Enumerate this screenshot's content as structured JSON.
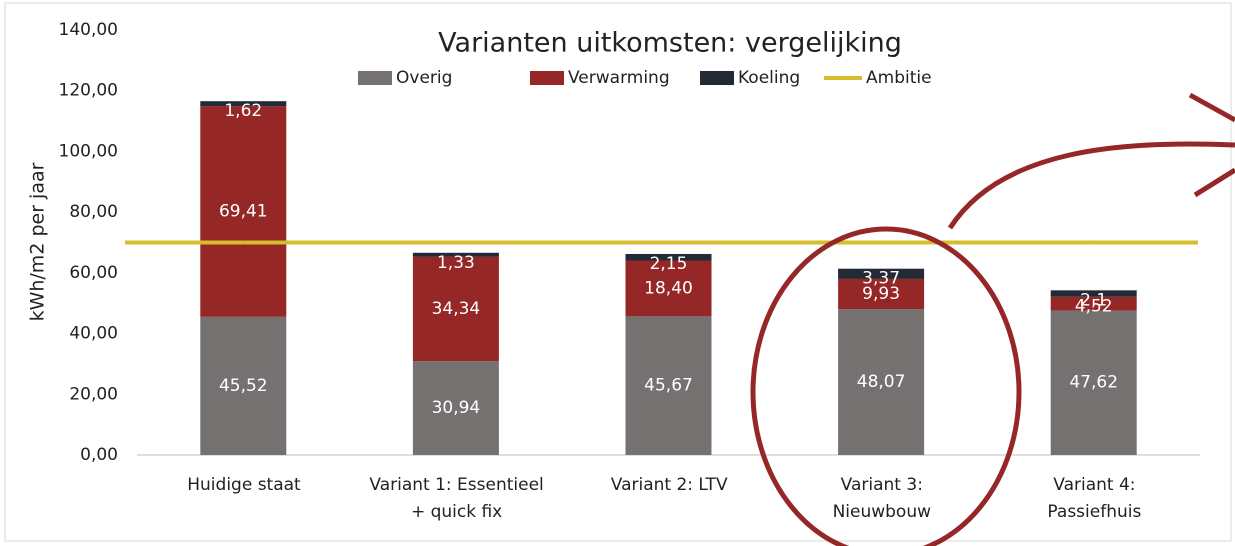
{
  "chart_data": {
    "type": "stacked-bar",
    "title": "Varianten uitkomsten: vergelijking",
    "y_label": "kWh/m2 per jaar",
    "categories": [
      "Huidige staat",
      "Variant 1: Essentieel\n+ quick fix",
      "Variant 2: LTV",
      "Variant 3:\nNieuwbouw",
      "Variant 4:\nPassiefhuis"
    ],
    "series": [
      {
        "name": "Overig",
        "color": "#767171",
        "values": [
          45.52,
          30.94,
          45.67,
          48.07,
          47.62
        ],
        "value_labels": [
          "45,52",
          "30,94",
          "45,67",
          "48,07",
          "47,62"
        ]
      },
      {
        "name": "Verwarming",
        "color": "#962727",
        "values": [
          69.41,
          34.34,
          18.4,
          9.93,
          4.52
        ],
        "value_labels": [
          "69,41",
          "34,34",
          "18,40",
          "9,93",
          "4,52"
        ]
      },
      {
        "name": "Koeling",
        "color": "#222a35",
        "values": [
          1.62,
          1.33,
          2.15,
          3.37,
          2.1
        ],
        "value_labels": [
          "1,62",
          "1,33",
          "2,15",
          "3,37",
          "2,1"
        ]
      },
      {
        "name": "Ambitie",
        "color": "#d6bd2c",
        "kind": "line",
        "values": [
          70,
          70,
          70,
          70,
          70
        ]
      }
    ],
    "ylim": [
      0,
      140
    ],
    "yticks": [
      {
        "value": 0,
        "label": "0,00"
      },
      {
        "value": 20,
        "label": "20,00"
      },
      {
        "value": 40,
        "label": "40,00"
      },
      {
        "value": 60,
        "label": "60,00"
      },
      {
        "value": 80,
        "label": "80,00"
      },
      {
        "value": 100,
        "label": "100,00"
      },
      {
        "value": 120,
        "label": "120,00"
      },
      {
        "value": 140,
        "label": "140,00"
      }
    ],
    "grid": false
  }
}
